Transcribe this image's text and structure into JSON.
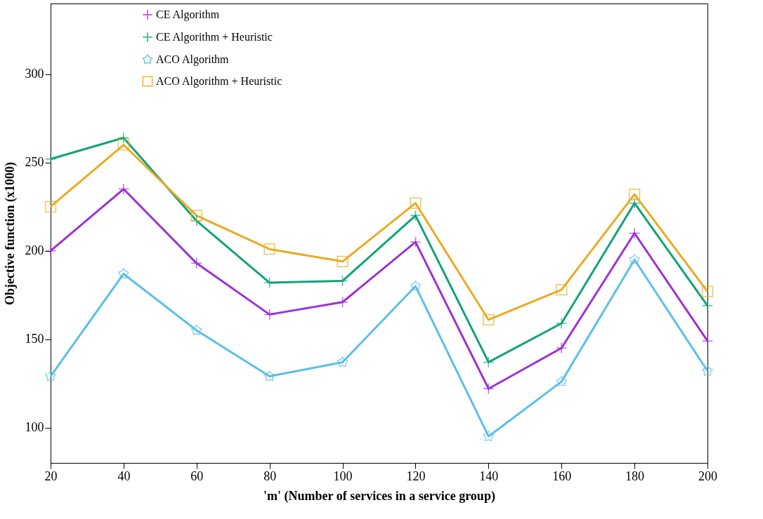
{
  "chart_data": {
    "type": "line",
    "xlabel": "'m' (Number of services in a service group)",
    "ylabel": "Objective function (x1000)",
    "x": [
      20,
      40,
      60,
      80,
      100,
      120,
      140,
      160,
      180,
      200
    ],
    "xlim": [
      20,
      200
    ],
    "xticks": [
      20,
      40,
      60,
      80,
      100,
      120,
      140,
      160,
      180,
      200
    ],
    "ylim": [
      80,
      340
    ],
    "yticks": [
      100,
      150,
      200,
      250,
      300
    ],
    "grid": false,
    "legend": "top",
    "line_style": "solid",
    "series": [
      {
        "name": "CE Algorithm",
        "color": "#9b30d9",
        "marker": "cross",
        "values": [
          200,
          235,
          193,
          164,
          171,
          205,
          122,
          145,
          210,
          149
        ]
      },
      {
        "name": "CE Algorithm + Heuristic",
        "color": "#10a37a",
        "marker": "cross",
        "values": [
          252,
          264,
          217,
          182,
          183,
          220,
          137,
          159,
          227,
          169
        ]
      },
      {
        "name": "ACO Algorithm",
        "color": "#5bbfe9",
        "marker": "star",
        "values": [
          129,
          187,
          155,
          129,
          137,
          180,
          95,
          126,
          195,
          132
        ]
      },
      {
        "name": "ACO Algorithm + Heuristic",
        "color": "#eaaa22",
        "marker": "square",
        "values": [
          225,
          260,
          220,
          201,
          194,
          227,
          161,
          178,
          232,
          177
        ]
      }
    ]
  }
}
